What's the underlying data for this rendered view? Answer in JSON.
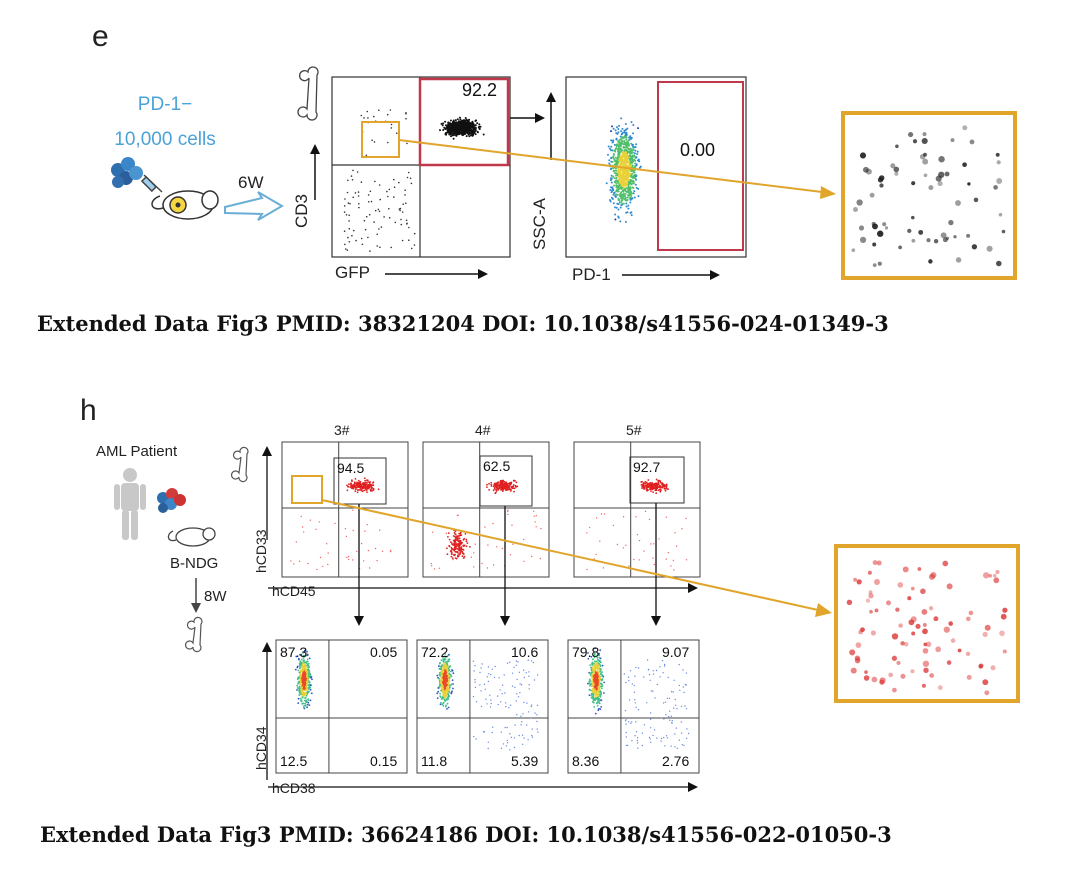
{
  "figure_e": {
    "panel_letter": "e",
    "cell_type": "PD-1−",
    "cell_count": "10,000 cells",
    "duration": "6W",
    "plot1": {
      "y_label": "CD3",
      "x_label": "GFP",
      "gate_value": "92.2"
    },
    "plot2": {
      "y_label": "SSC-A",
      "x_label": "PD-1",
      "gate_value": "0.00"
    },
    "caption": "Extended Data Fig3 PMID: 38321204 DOI: 10.1038/s41556-024-01349-3",
    "colors": {
      "gate": "#c0394b",
      "zoom": "#e0a52a",
      "arrow": "#6aaed6"
    }
  },
  "figure_h": {
    "panel_letter": "h",
    "patient_label": "AML Patient",
    "mouse_label": "B-NDG",
    "duration": "8W",
    "top_y_label": "hCD33",
    "top_x_label": "hCD45",
    "bottom_y_label": "hCD34",
    "bottom_x_label": "hCD38",
    "samples": [
      {
        "name": "3#",
        "gate_value": "94.5",
        "q_ul": "87.3",
        "q_ur": "0.05",
        "q_ll": "12.5",
        "q_lr": "0.15"
      },
      {
        "name": "4#",
        "gate_value": "62.5",
        "q_ul": "72.2",
        "q_ur": "10.6",
        "q_ll": "11.8",
        "q_lr": "5.39"
      },
      {
        "name": "5#",
        "gate_value": "92.7",
        "q_ul": "79.8",
        "q_ur": "9.07",
        "q_ll": "8.36",
        "q_lr": "2.76"
      }
    ],
    "caption": "Extended Data Fig3 PMID: 36624186 DOI: 10.1038/s41556-022-01050-3",
    "colors": {
      "events": "#e02020",
      "zoom": "#e0a52a"
    }
  }
}
